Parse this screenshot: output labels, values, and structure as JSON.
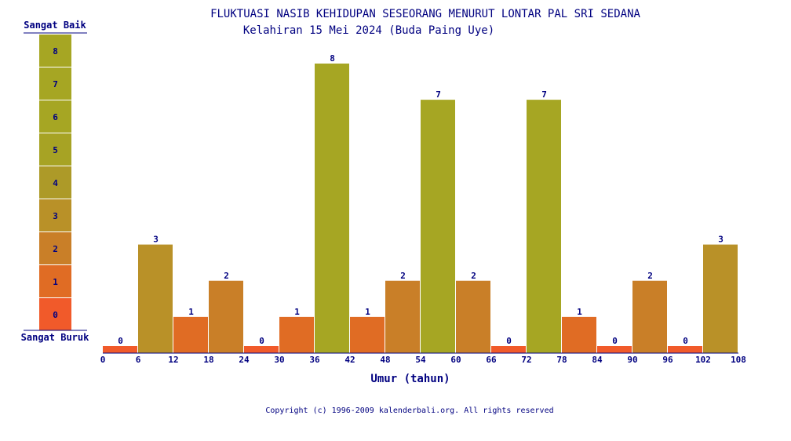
{
  "chart_data": {
    "type": "bar",
    "title": "FLUKTUASI NASIB KEHIDUPAN SESEORANG MENURUT LONTAR PAL SRI SEDANA",
    "subtitle": "Kelahiran 15 Mei 2024 (Buda Paing Uye)",
    "xlabel": "Umur (tahun)",
    "ylabel": "",
    "x_ticks": [
      "0",
      "6",
      "12",
      "18",
      "24",
      "30",
      "36",
      "42",
      "48",
      "54",
      "60",
      "66",
      "72",
      "78",
      "84",
      "90",
      "96",
      "102",
      "108"
    ],
    "x_range": [
      0,
      108
    ],
    "ylim": [
      0,
      8
    ],
    "bin_width": 6,
    "values": [
      0,
      3,
      1,
      2,
      0,
      1,
      8,
      1,
      2,
      7,
      2,
      0,
      7,
      1,
      0,
      2,
      0,
      3
    ],
    "grid": false,
    "legend": {
      "top_label": "Sangat Baik",
      "bottom_label": "Sangat Buruk",
      "levels": [
        "8",
        "7",
        "6",
        "5",
        "4",
        "3",
        "2",
        "1",
        "0"
      ]
    },
    "colors": {
      "0": "#f15a2a",
      "1": "#e06c24",
      "2": "#c97f28",
      "3": "#b99128",
      "4": "#ad9a28",
      "5": "#a7a324",
      "6": "#a6a623",
      "7": "#a6a623",
      "8": "#a6a623"
    },
    "text_color": "#000080"
  },
  "footer": {
    "copyright": "Copyright (c) 1996-2009 kalenderbali.org. All rights reserved"
  }
}
